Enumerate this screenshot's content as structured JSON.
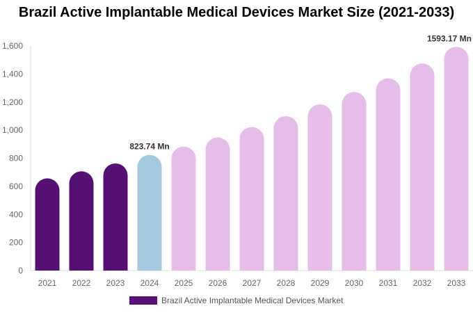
{
  "chart_data": {
    "type": "bar",
    "title": "Brazil Active Implantable Medical Devices Market Size (2021-2033)",
    "categories": [
      "2021",
      "2022",
      "2023",
      "2024",
      "2025",
      "2026",
      "2027",
      "2028",
      "2029",
      "2030",
      "2031",
      "2032",
      "2033"
    ],
    "series": [
      {
        "name": "Brazil Active Implantable Medical Devices Market",
        "values": [
          657,
          707,
          763,
          823.74,
          883,
          948,
          1022,
          1100,
          1184,
          1272,
          1369,
          1475,
          1593.17
        ]
      }
    ],
    "data_labels": {
      "2024": "823.74 Mn",
      "2033": "1593.17 Mn"
    },
    "ylim": [
      0,
      1600
    ],
    "yticks": [
      "0",
      "200",
      "400",
      "600",
      "800",
      "1,000",
      "1,200",
      "1,400",
      "1,600"
    ],
    "grid": false,
    "legend_position": "bottom",
    "colors": {
      "historical": "#541173",
      "current": "#a3cadf",
      "forecast": "#e6bce8"
    }
  }
}
